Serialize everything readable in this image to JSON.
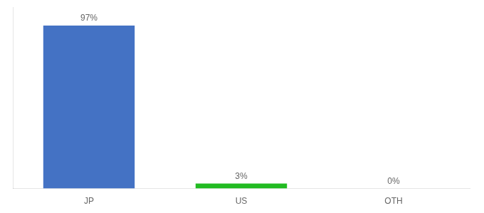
{
  "chart_data": {
    "type": "bar",
    "categories": [
      "JP",
      "US",
      "OTH"
    ],
    "values": [
      97,
      3,
      0
    ],
    "value_labels": [
      "97%",
      "3%",
      "0%"
    ],
    "colors": [
      "#4472C4",
      "#22BB22",
      "#4472C4"
    ],
    "ylim": [
      0,
      108
    ],
    "grid": false,
    "data_labels": true,
    "tick_labels": "x"
  }
}
